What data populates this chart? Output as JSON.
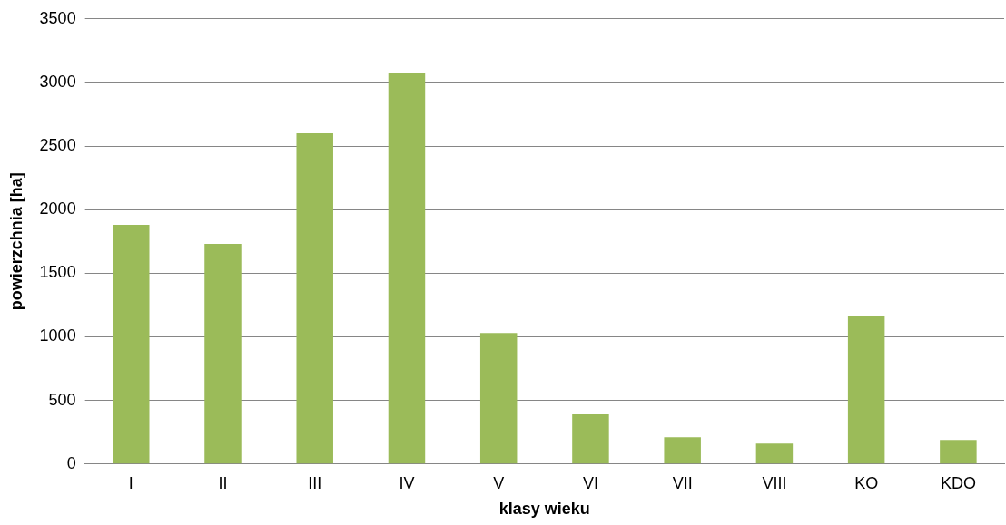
{
  "chart_data": {
    "type": "bar",
    "xlabel": "klasy wieku",
    "ylabel": "powierzchnia [ha]",
    "categories": [
      "I",
      "II",
      "III",
      "IV",
      "V",
      "VI",
      "VII",
      "VIII",
      "KO",
      "KDO"
    ],
    "values": [
      1880,
      1730,
      2600,
      3075,
      1030,
      390,
      210,
      160,
      1160,
      190
    ],
    "color": "#9bbb59",
    "ylim": [
      0,
      3500
    ],
    "yticks": [
      0,
      500,
      1000,
      1500,
      2000,
      2500,
      3000,
      3500
    ],
    "grid": "y",
    "legend": false
  }
}
